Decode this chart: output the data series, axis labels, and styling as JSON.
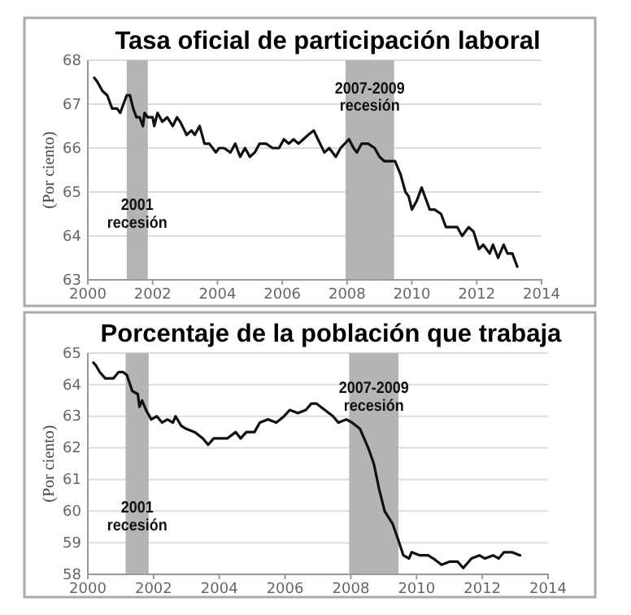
{
  "chart_data": [
    {
      "type": "line",
      "title": "Tasa oficial de participación laboral",
      "ylabel": "(Por ciento)",
      "x": [
        2000.2,
        2000.3,
        2000.45,
        2000.6,
        2000.75,
        2000.9,
        2001.0,
        2001.1,
        2001.2,
        2001.3,
        2001.4,
        2001.5,
        2001.6,
        2001.7,
        2001.75,
        2001.85,
        2002.0,
        2002.05,
        2002.15,
        2002.3,
        2002.45,
        2002.62,
        2002.75,
        2002.85,
        2003.05,
        2003.2,
        2003.3,
        2003.45,
        2003.6,
        2003.75,
        2003.95,
        2004.05,
        2004.2,
        2004.4,
        2004.55,
        2004.7,
        2004.85,
        2005.0,
        2005.15,
        2005.3,
        2005.5,
        2005.7,
        2005.9,
        2006.05,
        2006.2,
        2006.35,
        2006.5,
        2006.65,
        2006.8,
        2006.97,
        2007.1,
        2007.3,
        2007.45,
        2007.65,
        2007.8,
        2008.06,
        2008.2,
        2008.3,
        2008.45,
        2008.65,
        2008.85,
        2009.0,
        2009.15,
        2009.3,
        2009.48,
        2009.65,
        2009.8,
        2009.9,
        2010.0,
        2010.15,
        2010.3,
        2010.45,
        2010.55,
        2010.7,
        2010.9,
        2011.05,
        2011.2,
        2011.4,
        2011.55,
        2011.75,
        2011.9,
        2012.07,
        2012.2,
        2012.4,
        2012.5,
        2012.66,
        2012.83,
        2012.95,
        2013.1,
        2013.25
      ],
      "values": [
        67.6,
        67.5,
        67.3,
        67.2,
        66.9,
        66.9,
        66.8,
        67.0,
        67.2,
        67.2,
        66.9,
        66.7,
        66.7,
        66.5,
        66.8,
        66.7,
        66.7,
        66.5,
        66.8,
        66.6,
        66.7,
        66.5,
        66.7,
        66.6,
        66.3,
        66.4,
        66.3,
        66.5,
        66.1,
        66.1,
        65.9,
        66.0,
        66.0,
        65.9,
        66.1,
        65.8,
        66.0,
        65.8,
        65.9,
        66.1,
        66.1,
        66.0,
        66.0,
        66.2,
        66.1,
        66.2,
        66.1,
        66.2,
        66.3,
        66.4,
        66.2,
        65.9,
        66.0,
        65.8,
        66.0,
        66.2,
        66.0,
        65.9,
        66.1,
        66.1,
        66.0,
        65.8,
        65.7,
        65.7,
        65.7,
        65.4,
        65.0,
        64.9,
        64.6,
        64.8,
        65.1,
        64.8,
        64.6,
        64.6,
        64.5,
        64.2,
        64.2,
        64.2,
        64.0,
        64.2,
        64.1,
        63.7,
        63.8,
        63.6,
        63.8,
        63.5,
        63.8,
        63.6,
        63.6,
        63.3
      ],
      "color": "#111111",
      "xlim": [
        2000,
        2014
      ],
      "xticks": [
        2000,
        2002,
        2004,
        2006,
        2008,
        2010,
        2012,
        2014
      ],
      "ylim": [
        63,
        68
      ],
      "yticks": [
        63,
        64,
        65,
        66,
        67,
        68
      ],
      "grid": "y",
      "bands": [
        {
          "axis": "x",
          "from": 2001.2,
          "to": 2001.85,
          "label": "2001 recesión",
          "color": "#b4b4b4"
        },
        {
          "axis": "x",
          "from": 2007.95,
          "to": 2009.45,
          "label": "2007-2009 recesión",
          "color": "#b4b4b4"
        }
      ]
    },
    {
      "type": "line",
      "title": "Porcentaje de la población que trabaja",
      "ylabel": "(Por ciento)",
      "x": [
        2000.17,
        2000.25,
        2000.36,
        2000.53,
        2000.78,
        2000.94,
        2001.07,
        2001.19,
        2001.35,
        2001.52,
        2001.57,
        2001.65,
        2001.77,
        2001.93,
        2002.1,
        2002.26,
        2002.42,
        2002.59,
        2002.67,
        2002.84,
        2003.0,
        2003.25,
        2003.5,
        2003.66,
        2003.83,
        2004.0,
        2004.24,
        2004.5,
        2004.65,
        2004.82,
        2005.07,
        2005.23,
        2005.48,
        2005.73,
        2005.97,
        2006.14,
        2006.39,
        2006.63,
        2006.8,
        2006.96,
        2007.21,
        2007.46,
        2007.62,
        2007.87,
        2008.04,
        2008.28,
        2008.53,
        2008.7,
        2008.86,
        2009.03,
        2009.27,
        2009.44,
        2009.6,
        2009.77,
        2009.85,
        2010.1,
        2010.35,
        2010.51,
        2010.76,
        2011.0,
        2011.25,
        2011.42,
        2011.67,
        2011.91,
        2012.08,
        2012.33,
        2012.5,
        2012.66,
        2012.9,
        2013.15
      ],
      "values": [
        64.7,
        64.6,
        64.4,
        64.2,
        64.2,
        64.4,
        64.4,
        64.3,
        63.8,
        63.7,
        63.3,
        63.5,
        63.2,
        62.9,
        63.0,
        62.8,
        62.9,
        62.8,
        63.0,
        62.7,
        62.6,
        62.5,
        62.3,
        62.1,
        62.3,
        62.3,
        62.3,
        62.5,
        62.3,
        62.5,
        62.5,
        62.8,
        62.9,
        62.8,
        63.0,
        63.2,
        63.1,
        63.2,
        63.4,
        63.4,
        63.2,
        63.0,
        62.8,
        62.9,
        62.8,
        62.6,
        62.0,
        61.5,
        60.7,
        60.0,
        59.6,
        59.1,
        58.6,
        58.5,
        58.7,
        58.6,
        58.6,
        58.5,
        58.3,
        58.4,
        58.4,
        58.2,
        58.5,
        58.6,
        58.5,
        58.6,
        58.5,
        58.7,
        58.7,
        58.6
      ],
      "color": "#111111",
      "xlim": [
        2000,
        2014
      ],
      "xticks": [
        2000,
        2002,
        2004,
        2006,
        2008,
        2010,
        2012,
        2014
      ],
      "ylim": [
        58,
        65
      ],
      "yticks": [
        58,
        59,
        60,
        61,
        62,
        63,
        64,
        65
      ],
      "grid": "y",
      "bands": [
        {
          "axis": "x",
          "from": 2001.15,
          "to": 2001.85,
          "label": "2001 recesión",
          "color": "#b4b4b4"
        },
        {
          "axis": "x",
          "from": 2007.95,
          "to": 2009.45,
          "label": "2007-2009 recesión",
          "color": "#b4b4b4"
        }
      ]
    }
  ]
}
